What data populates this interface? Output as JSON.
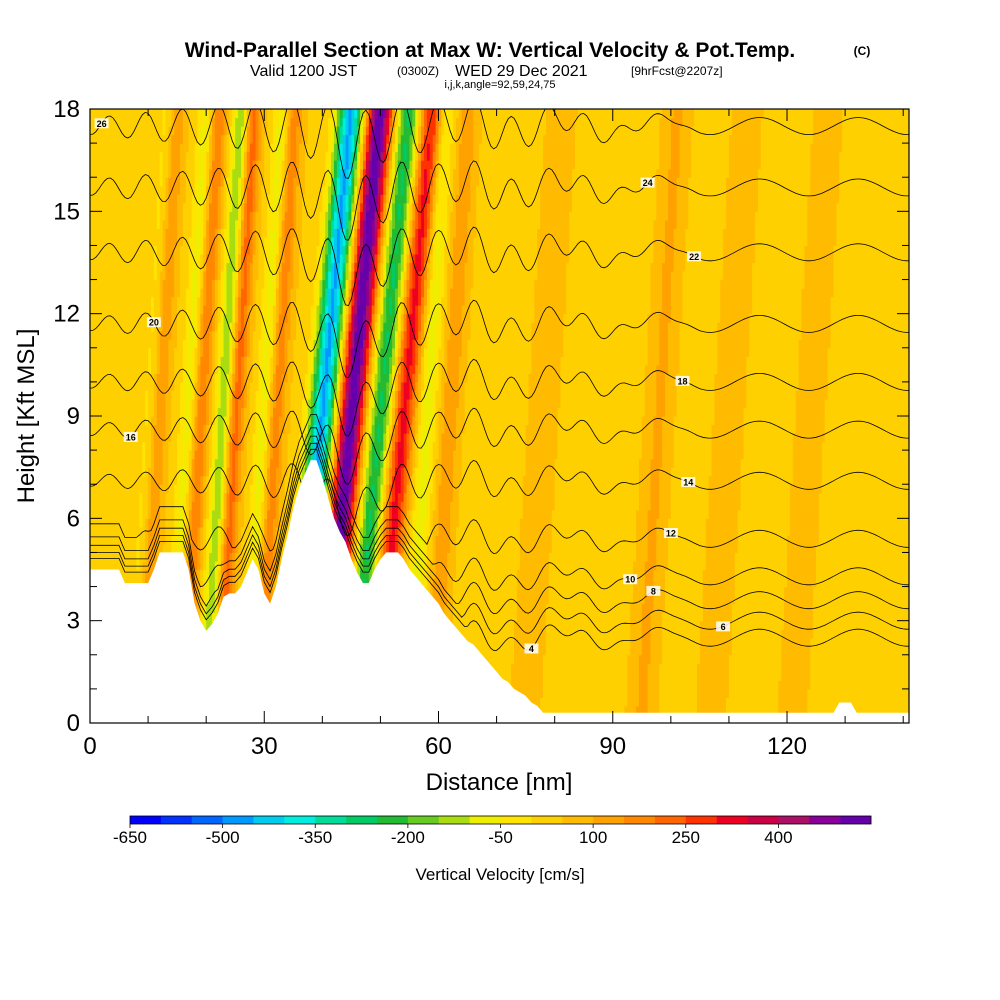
{
  "header": {
    "title": "Wind-Parallel Section at Max W: Vertical Velocity & Pot.Temp.",
    "title_mark": "(C)",
    "subtitle_a": "Valid 1200 JST",
    "subtitle_b": "(0300Z)",
    "subtitle_c": "WED 29 Dec 2021",
    "subtitle_d": "[9hrFcst@2207z]",
    "subtitle_e": "i,j,k,angle=92,59,24,75"
  },
  "chart_data": {
    "type": "heatmap",
    "title": "Wind-Parallel Section at Max W: Vertical Velocity & Pot.Temp.",
    "xlabel": "Distance [nm]",
    "ylabel": "Height [Kft MSL]",
    "xlim": [
      0,
      141
    ],
    "ylim": [
      0,
      18
    ],
    "x_ticks": [
      "0",
      "30",
      "60",
      "90",
      "120"
    ],
    "y_ticks": [
      "0",
      "3",
      "6",
      "9",
      "12",
      "15",
      "18"
    ],
    "colorbar": {
      "label": "Vertical Velocity [cm/s]",
      "tick_labels": [
        "-650",
        "-500",
        "-350",
        "-200",
        "-50",
        "100",
        "250",
        "400"
      ],
      "colors": [
        "#0000ff",
        "#0033ff",
        "#0066ff",
        "#0099ff",
        "#00ccee",
        "#00eedd",
        "#00dd99",
        "#00cc66",
        "#22bb33",
        "#66cc22",
        "#aadd11",
        "#eeee00",
        "#ffe400",
        "#ffd000",
        "#ffbb00",
        "#ffa200",
        "#ff8800",
        "#ff6600",
        "#ff3300",
        "#ee0022",
        "#cc0044",
        "#aa1166",
        "#880099",
        "#6600aa"
      ]
    },
    "terrain_kft": [
      [
        0,
        4.5
      ],
      [
        1,
        4.5
      ],
      [
        2,
        4.5
      ],
      [
        3,
        4.5
      ],
      [
        4,
        4.5
      ],
      [
        5,
        4.5
      ],
      [
        6,
        4.1
      ],
      [
        7,
        4.1
      ],
      [
        8,
        4.1
      ],
      [
        9,
        4.1
      ],
      [
        10,
        4.1
      ],
      [
        11,
        4.5
      ],
      [
        12,
        5
      ],
      [
        13,
        5
      ],
      [
        14,
        5
      ],
      [
        15,
        5
      ],
      [
        16,
        5
      ],
      [
        17,
        4.5
      ],
      [
        18,
        3.5
      ],
      [
        19,
        3.0
      ],
      [
        20,
        2.7
      ],
      [
        21,
        2.9
      ],
      [
        22,
        3.2
      ],
      [
        23,
        3.7
      ],
      [
        24,
        3.8
      ],
      [
        25,
        3.8
      ],
      [
        26,
        4.0
      ],
      [
        27,
        4.4
      ],
      [
        28,
        4.8
      ],
      [
        29,
        4.5
      ],
      [
        30,
        3.8
      ],
      [
        31,
        3.5
      ],
      [
        32,
        4.0
      ],
      [
        33,
        4.8
      ],
      [
        34,
        5.5
      ],
      [
        35,
        6.3
      ],
      [
        36,
        6.9
      ],
      [
        37,
        7.3
      ],
      [
        38,
        7.7
      ],
      [
        39,
        7.7
      ],
      [
        40,
        7.2
      ],
      [
        41,
        6.6
      ],
      [
        42,
        6.0
      ],
      [
        43,
        5.6
      ],
      [
        44,
        5.3
      ],
      [
        45,
        4.8
      ],
      [
        46,
        4.4
      ],
      [
        47,
        4.1
      ],
      [
        48,
        4.1
      ],
      [
        49,
        4.5
      ],
      [
        50,
        4.8
      ],
      [
        51,
        5.0
      ],
      [
        52,
        5.0
      ],
      [
        53,
        5.0
      ],
      [
        54,
        4.8
      ],
      [
        55,
        4.5
      ],
      [
        56,
        4.3
      ],
      [
        57,
        4.1
      ],
      [
        58,
        3.9
      ],
      [
        59,
        3.7
      ],
      [
        60,
        3.5
      ],
      [
        61,
        3.2
      ],
      [
        62,
        3.0
      ],
      [
        63,
        2.8
      ],
      [
        64,
        2.6
      ],
      [
        65,
        2.4
      ],
      [
        66,
        2.3
      ],
      [
        67,
        2.1
      ],
      [
        68,
        1.9
      ],
      [
        69,
        1.7
      ],
      [
        70,
        1.5
      ],
      [
        71,
        1.3
      ],
      [
        72,
        1.2
      ],
      [
        73,
        1.0
      ],
      [
        74,
        0.9
      ],
      [
        75,
        0.8
      ],
      [
        76,
        0.6
      ],
      [
        77,
        0.5
      ],
      [
        78,
        0.3
      ],
      [
        79,
        0.3
      ],
      [
        80,
        0.3
      ],
      [
        85,
        0.3
      ],
      [
        90,
        0.3
      ],
      [
        95,
        0.3
      ],
      [
        100,
        0.3
      ],
      [
        105,
        0.3
      ],
      [
        110,
        0.3
      ],
      [
        115,
        0.3
      ],
      [
        120,
        0.3
      ],
      [
        125,
        0.3
      ],
      [
        128,
        0.3
      ],
      [
        129,
        0.6
      ],
      [
        130,
        0.6
      ],
      [
        131,
        0.6
      ],
      [
        132,
        0.3
      ],
      [
        135,
        0.3
      ],
      [
        141,
        0.3
      ]
    ],
    "velocity_bands_cm_s": [
      {
        "x": 10,
        "halfwidth": 1.4,
        "value": -50
      },
      {
        "x": 12,
        "halfwidth": 1.4,
        "value": 100
      },
      {
        "x": 17,
        "halfwidth": 1.5,
        "value": -120
      },
      {
        "x": 19,
        "halfwidth": 1.5,
        "value": 160
      },
      {
        "x": 23,
        "halfwidth": 1.5,
        "value": -200
      },
      {
        "x": 25,
        "halfwidth": 1.5,
        "value": 200
      },
      {
        "x": 30,
        "halfwidth": 1.5,
        "value": -120
      },
      {
        "x": 32,
        "halfwidth": 1.5,
        "value": 150
      },
      {
        "x": 40,
        "halfwidth": 2.2,
        "value": -500
      },
      {
        "x": 45,
        "halfwidth": 2.2,
        "value": 500
      },
      {
        "x": 50,
        "halfwidth": 2.0,
        "value": -300
      },
      {
        "x": 54,
        "halfwidth": 2.0,
        "value": 280
      },
      {
        "x": 58,
        "halfwidth": 1.6,
        "value": -120
      },
      {
        "x": 62,
        "halfwidth": 1.6,
        "value": 100
      },
      {
        "x": 78,
        "halfwidth": 2.0,
        "value": 60
      },
      {
        "x": 98,
        "halfwidth": 2.0,
        "value": 70
      },
      {
        "x": 110,
        "halfwidth": 2.0,
        "value": 60
      },
      {
        "x": 124,
        "halfwidth": 2.0,
        "value": 50
      }
    ],
    "theta_contours": [
      {
        "value": 4,
        "base_kft": 2.5,
        "label": "4",
        "label_x": 76
      },
      {
        "value": 6,
        "base_kft": 3.0,
        "label": "6",
        "label_x": 109
      },
      {
        "value": 8,
        "base_kft": 3.6,
        "label": "8",
        "label_x": 97
      },
      {
        "value": 10,
        "base_kft": 4.3,
        "label": "10",
        "label_x": 93
      },
      {
        "value": 12,
        "base_kft": 5.4,
        "label": "12",
        "label_x": 100
      },
      {
        "value": 14,
        "base_kft": 7.1,
        "label": "14",
        "label_x": 103
      },
      {
        "value": 16,
        "base_kft": 8.6,
        "label": "16",
        "label_x": 7
      },
      {
        "value": 18,
        "base_kft": 10.0,
        "label": "18",
        "label_x": 102
      },
      {
        "value": 20,
        "base_kft": 11.7,
        "label": "20",
        "label_x": 11
      },
      {
        "value": 22,
        "base_kft": 13.8,
        "label": "22",
        "label_x": 104
      },
      {
        "value": 24,
        "base_kft": 15.7,
        "label": "24",
        "label_x": 96
      },
      {
        "value": 26,
        "base_kft": 17.5,
        "label": "26",
        "label_x": 2
      }
    ]
  }
}
